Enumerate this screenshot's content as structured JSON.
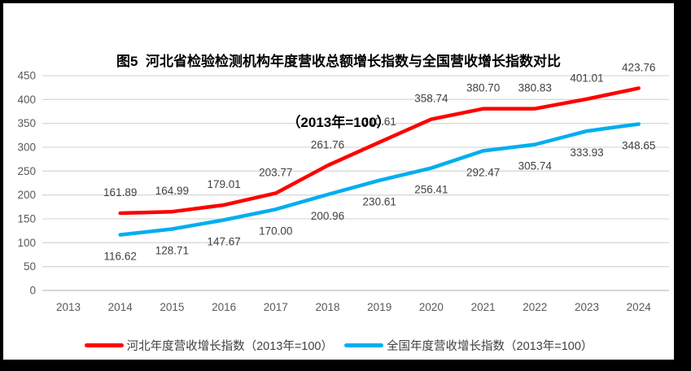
{
  "title": {
    "line1": "图5  河北省检验检测机构年度营收总额增长指数与全国营收增长指数对比",
    "line2": "（2013年=100）"
  },
  "chart_data": {
    "type": "line",
    "categories": [
      "2013",
      "2014",
      "2015",
      "2016",
      "2017",
      "2018",
      "2019",
      "2020",
      "2021",
      "2022",
      "2023",
      "2024"
    ],
    "series": [
      {
        "name": "河北年度营收增长指数（2013年=100）",
        "color": "#ff0000",
        "start_index": 1,
        "label_position": "above",
        "values": [
          161.89,
          164.99,
          179.01,
          203.77,
          261.76,
          310.61,
          358.74,
          380.7,
          380.83,
          401.01,
          423.76
        ]
      },
      {
        "name": "全国年度营收增长指数（2013年=100）",
        "color": "#00aeef",
        "start_index": 1,
        "label_position": "below",
        "values": [
          116.62,
          128.71,
          147.67,
          170.0,
          200.96,
          230.61,
          256.41,
          292.47,
          305.74,
          333.93,
          348.65
        ]
      }
    ],
    "yticks": [
      0,
      50,
      100,
      150,
      200,
      250,
      300,
      350,
      400,
      450
    ],
    "ylim": [
      0,
      450
    ],
    "grid": true,
    "legend_position": "bottom",
    "value_label_decimals": 2
  },
  "colors": {
    "frame_border": "#000000",
    "plot_background": "#ffffff",
    "gridline": "#d9d9d9",
    "axis_line": "#bfbfbf",
    "tick_label": "#595959",
    "data_label": "#404040",
    "title": "#000000"
  }
}
